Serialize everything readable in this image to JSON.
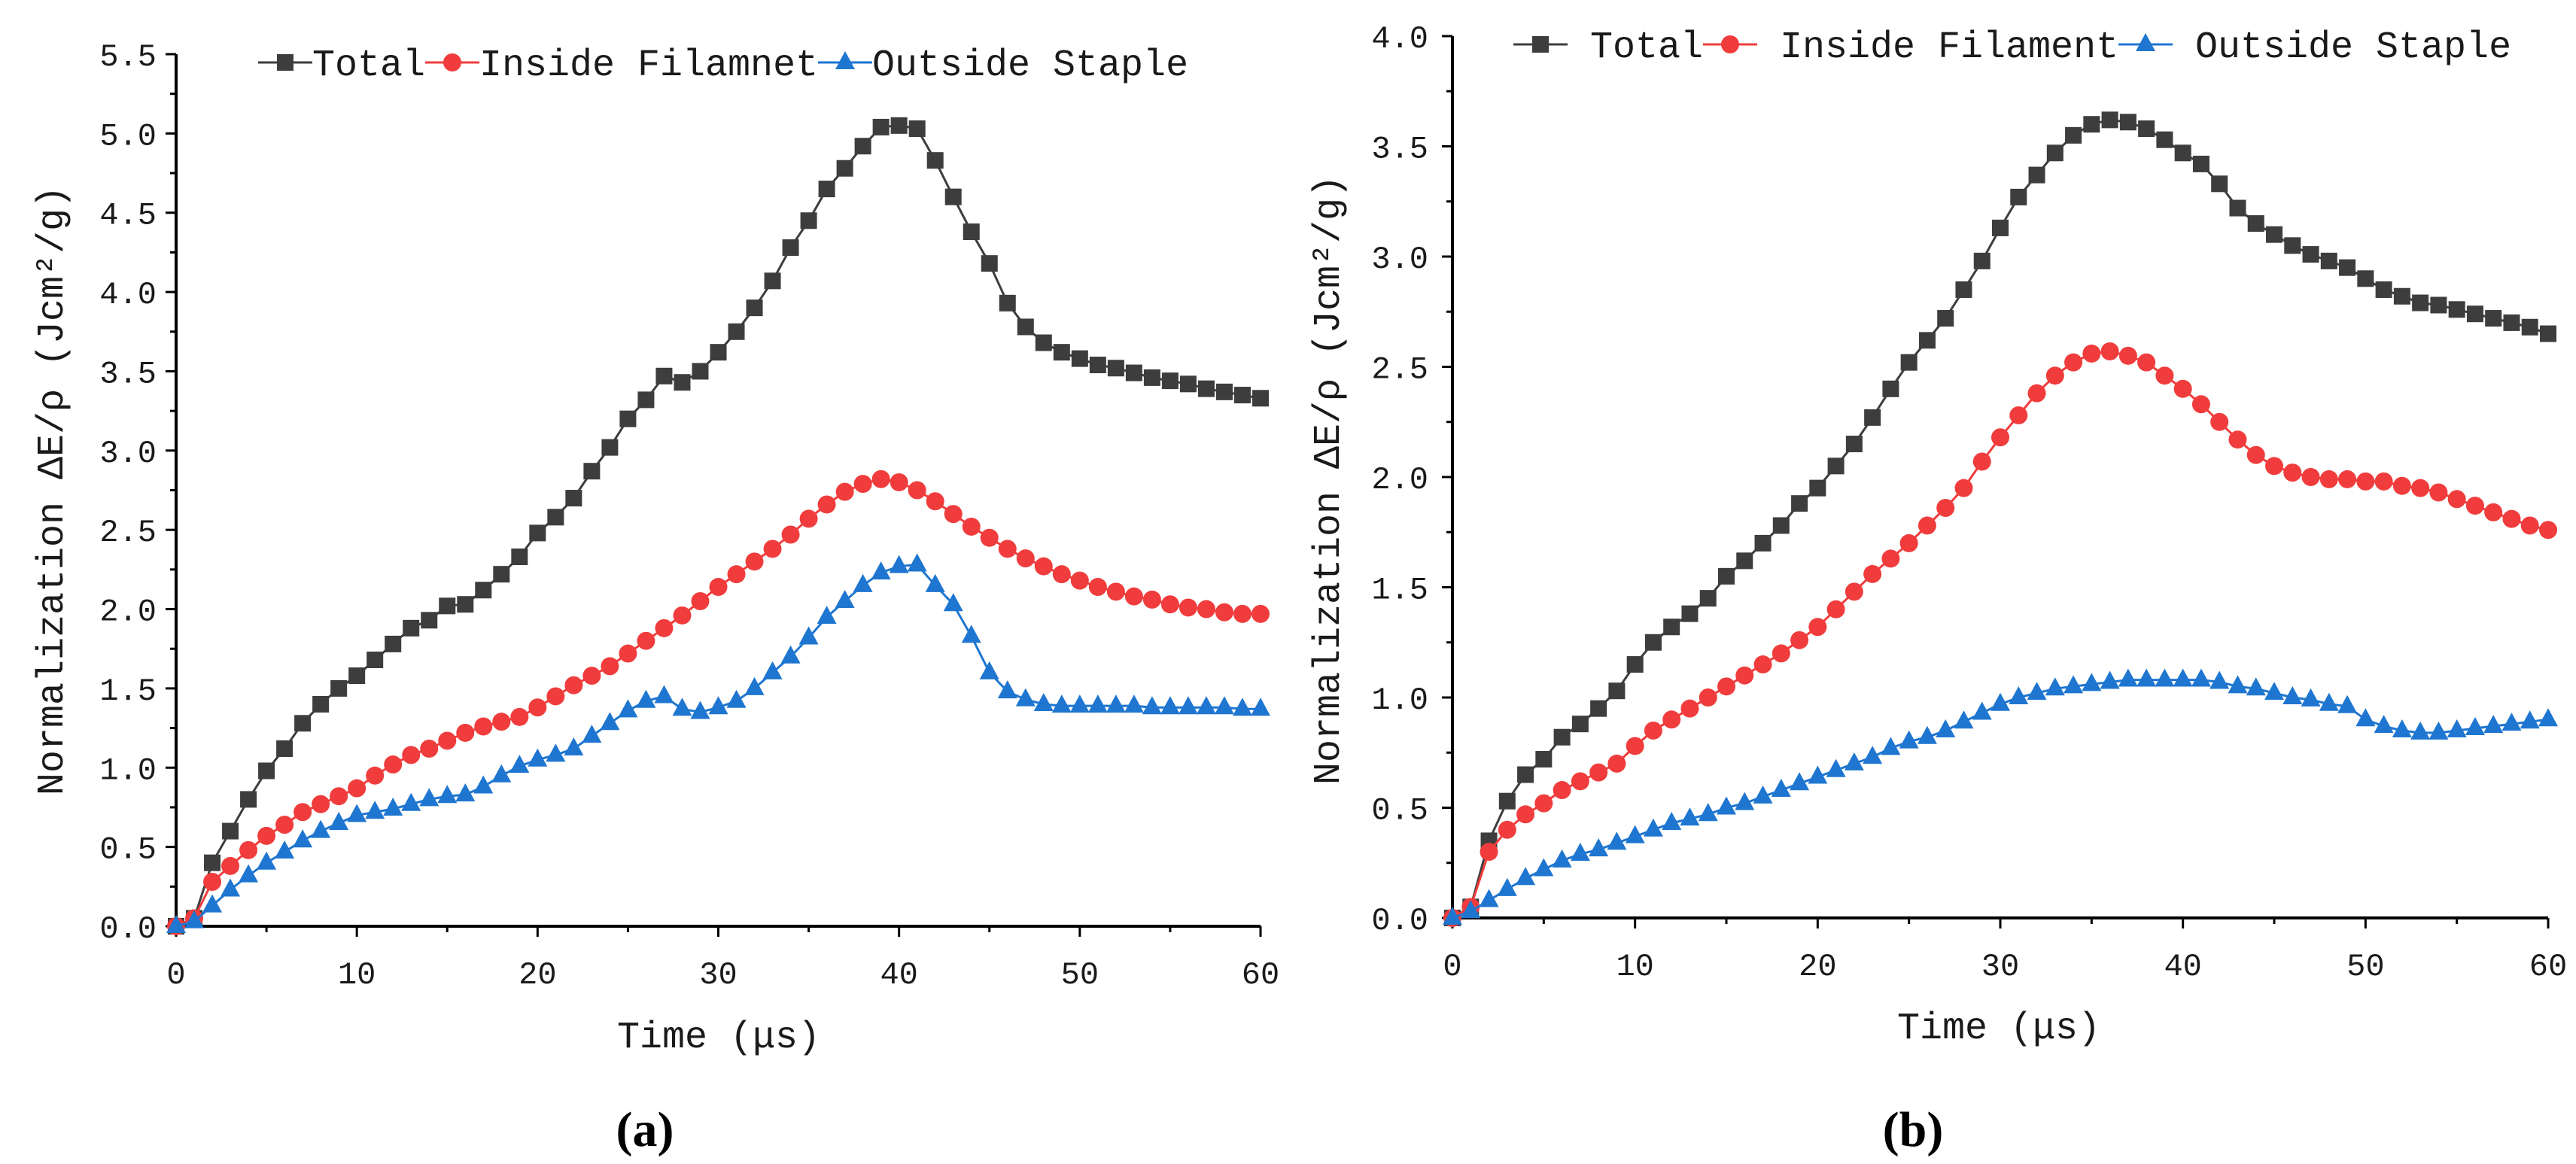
{
  "chart_data": [
    {
      "type": "line",
      "panel_label": "(a)",
      "xlabel": "Time (μs)",
      "ylabel": "Normalization ΔE/ρ (Jcm²/g)",
      "xlim": [
        0,
        60
      ],
      "ylim": [
        0,
        5.5
      ],
      "xticks": [
        "0",
        "10",
        "20",
        "30",
        "40",
        "50",
        "60"
      ],
      "yticks": [
        "0.0",
        "0.5",
        "1.0",
        "1.5",
        "2.0",
        "2.5",
        "3.0",
        "3.5",
        "4.0",
        "4.5",
        "5.0",
        "5.5"
      ],
      "legend": "top",
      "x": [
        0,
        1,
        2,
        3,
        4,
        5,
        6,
        7,
        8,
        9,
        10,
        11,
        12,
        13,
        14,
        15,
        16,
        17,
        18,
        19,
        20,
        21,
        22,
        23,
        24,
        25,
        26,
        27,
        28,
        29,
        30,
        31,
        32,
        33,
        34,
        35,
        36,
        37,
        38,
        39,
        40,
        41,
        42,
        43,
        44,
        45,
        46,
        47,
        48,
        49,
        50,
        51,
        52,
        53,
        54,
        55,
        56,
        57,
        58,
        59,
        60
      ],
      "series": [
        {
          "name": "Total",
          "marker": "square",
          "color": "#3d3d3d",
          "values": [
            0.0,
            0.05,
            0.4,
            0.6,
            0.8,
            0.98,
            1.12,
            1.28,
            1.4,
            1.5,
            1.58,
            1.68,
            1.78,
            1.88,
            1.93,
            2.02,
            2.03,
            2.12,
            2.22,
            2.33,
            2.48,
            2.58,
            2.7,
            2.87,
            3.02,
            3.2,
            3.32,
            3.47,
            3.43,
            3.5,
            3.62,
            3.75,
            3.9,
            4.07,
            4.28,
            4.45,
            4.65,
            4.78,
            4.92,
            5.04,
            5.05,
            5.03,
            4.83,
            4.6,
            4.38,
            4.18,
            3.93,
            3.78,
            3.68,
            3.62,
            3.58,
            3.54,
            3.52,
            3.49,
            3.46,
            3.44,
            3.42,
            3.39,
            3.37,
            3.35,
            3.33
          ]
        },
        {
          "name": "Inside Filamnet",
          "marker": "circle",
          "color": "#f03c3c",
          "values": [
            0.0,
            0.05,
            0.28,
            0.38,
            0.48,
            0.57,
            0.64,
            0.72,
            0.77,
            0.82,
            0.87,
            0.95,
            1.02,
            1.08,
            1.12,
            1.17,
            1.22,
            1.26,
            1.29,
            1.32,
            1.38,
            1.45,
            1.52,
            1.58,
            1.64,
            1.72,
            1.8,
            1.88,
            1.96,
            2.05,
            2.14,
            2.22,
            2.3,
            2.38,
            2.47,
            2.57,
            2.66,
            2.74,
            2.79,
            2.82,
            2.8,
            2.75,
            2.68,
            2.6,
            2.52,
            2.45,
            2.38,
            2.32,
            2.27,
            2.22,
            2.18,
            2.14,
            2.11,
            2.08,
            2.06,
            2.03,
            2.01,
            2.0,
            1.98,
            1.97,
            1.97
          ]
        },
        {
          "name": "Outside Staple",
          "marker": "triangle",
          "color": "#1f76d0",
          "values": [
            0.0,
            0.03,
            0.13,
            0.23,
            0.32,
            0.4,
            0.47,
            0.54,
            0.6,
            0.65,
            0.7,
            0.72,
            0.74,
            0.77,
            0.8,
            0.82,
            0.83,
            0.88,
            0.95,
            1.01,
            1.05,
            1.08,
            1.12,
            1.2,
            1.28,
            1.36,
            1.42,
            1.45,
            1.37,
            1.35,
            1.38,
            1.42,
            1.5,
            1.6,
            1.7,
            1.82,
            1.95,
            2.05,
            2.15,
            2.23,
            2.27,
            2.28,
            2.15,
            2.03,
            1.83,
            1.6,
            1.48,
            1.43,
            1.4,
            1.39,
            1.39,
            1.39,
            1.39,
            1.39,
            1.38,
            1.38,
            1.38,
            1.38,
            1.38,
            1.37,
            1.37
          ]
        }
      ]
    },
    {
      "type": "line",
      "panel_label": "(b)",
      "xlabel": "Time (μs)",
      "ylabel": "Normalization ΔE/ρ (Jcm²/g)",
      "xlim": [
        0,
        60
      ],
      "ylim": [
        0,
        4.0
      ],
      "xticks": [
        "0",
        "10",
        "20",
        "30",
        "40",
        "50",
        "60"
      ],
      "yticks": [
        "0.0",
        "0.5",
        "1.0",
        "1.5",
        "2.0",
        "2.5",
        "3.0",
        "3.5",
        "4.0"
      ],
      "legend": "top",
      "x": [
        0,
        1,
        2,
        3,
        4,
        5,
        6,
        7,
        8,
        9,
        10,
        11,
        12,
        13,
        14,
        15,
        16,
        17,
        18,
        19,
        20,
        21,
        22,
        23,
        24,
        25,
        26,
        27,
        28,
        29,
        30,
        31,
        32,
        33,
        34,
        35,
        36,
        37,
        38,
        39,
        40,
        41,
        42,
        43,
        44,
        45,
        46,
        47,
        48,
        49,
        50,
        51,
        52,
        53,
        54,
        55,
        56,
        57,
        58,
        59,
        60
      ],
      "series": [
        {
          "name": "Total",
          "marker": "square",
          "color": "#3d3d3d",
          "values": [
            0.0,
            0.05,
            0.35,
            0.53,
            0.65,
            0.72,
            0.82,
            0.88,
            0.95,
            1.03,
            1.15,
            1.25,
            1.32,
            1.38,
            1.45,
            1.55,
            1.62,
            1.7,
            1.78,
            1.88,
            1.95,
            2.05,
            2.15,
            2.27,
            2.4,
            2.52,
            2.62,
            2.72,
            2.85,
            2.98,
            3.13,
            3.27,
            3.37,
            3.47,
            3.55,
            3.6,
            3.62,
            3.61,
            3.58,
            3.53,
            3.47,
            3.42,
            3.33,
            3.22,
            3.15,
            3.1,
            3.05,
            3.01,
            2.98,
            2.95,
            2.9,
            2.85,
            2.82,
            2.79,
            2.78,
            2.76,
            2.74,
            2.72,
            2.7,
            2.68,
            2.65
          ]
        },
        {
          "name": "Inside Filament",
          "marker": "circle",
          "color": "#f03c3c",
          "values": [
            0.0,
            0.05,
            0.3,
            0.4,
            0.47,
            0.52,
            0.58,
            0.62,
            0.66,
            0.7,
            0.78,
            0.85,
            0.9,
            0.95,
            1.0,
            1.05,
            1.1,
            1.15,
            1.2,
            1.26,
            1.32,
            1.4,
            1.48,
            1.56,
            1.63,
            1.7,
            1.78,
            1.86,
            1.95,
            2.07,
            2.18,
            2.28,
            2.38,
            2.46,
            2.52,
            2.56,
            2.57,
            2.55,
            2.52,
            2.46,
            2.4,
            2.33,
            2.25,
            2.17,
            2.1,
            2.05,
            2.02,
            2.0,
            1.99,
            1.99,
            1.98,
            1.98,
            1.96,
            1.95,
            1.93,
            1.9,
            1.87,
            1.84,
            1.81,
            1.78,
            1.76
          ]
        },
        {
          "name": "Outside Staple",
          "marker": "triangle",
          "color": "#1f76d0",
          "values": [
            0.0,
            0.03,
            0.08,
            0.13,
            0.18,
            0.22,
            0.26,
            0.29,
            0.31,
            0.34,
            0.37,
            0.4,
            0.43,
            0.45,
            0.47,
            0.5,
            0.52,
            0.55,
            0.58,
            0.61,
            0.64,
            0.67,
            0.7,
            0.73,
            0.77,
            0.8,
            0.82,
            0.85,
            0.89,
            0.93,
            0.97,
            1.0,
            1.02,
            1.04,
            1.05,
            1.06,
            1.07,
            1.08,
            1.08,
            1.08,
            1.08,
            1.08,
            1.07,
            1.05,
            1.04,
            1.02,
            1.0,
            0.99,
            0.97,
            0.96,
            0.9,
            0.87,
            0.85,
            0.84,
            0.84,
            0.85,
            0.86,
            0.87,
            0.88,
            0.89,
            0.9
          ]
        }
      ]
    }
  ]
}
